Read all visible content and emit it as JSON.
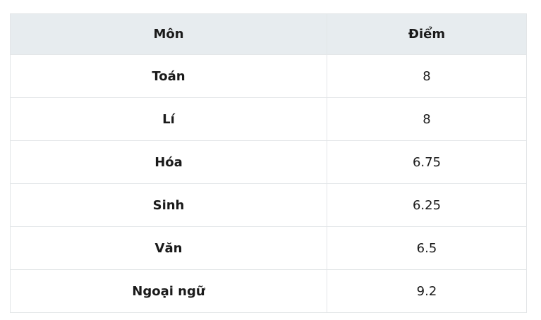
{
  "table": {
    "headers": {
      "subject": "Môn",
      "score": "Điểm"
    },
    "rows": [
      {
        "subject": "Toán",
        "score": "8"
      },
      {
        "subject": "Lí",
        "score": "8"
      },
      {
        "subject": "Hóa",
        "score": "6.75"
      },
      {
        "subject": "Sinh",
        "score": "6.25"
      },
      {
        "subject": "Văn",
        "score": "6.5"
      },
      {
        "subject": "Ngoại ngữ",
        "score": "9.2"
      }
    ]
  }
}
